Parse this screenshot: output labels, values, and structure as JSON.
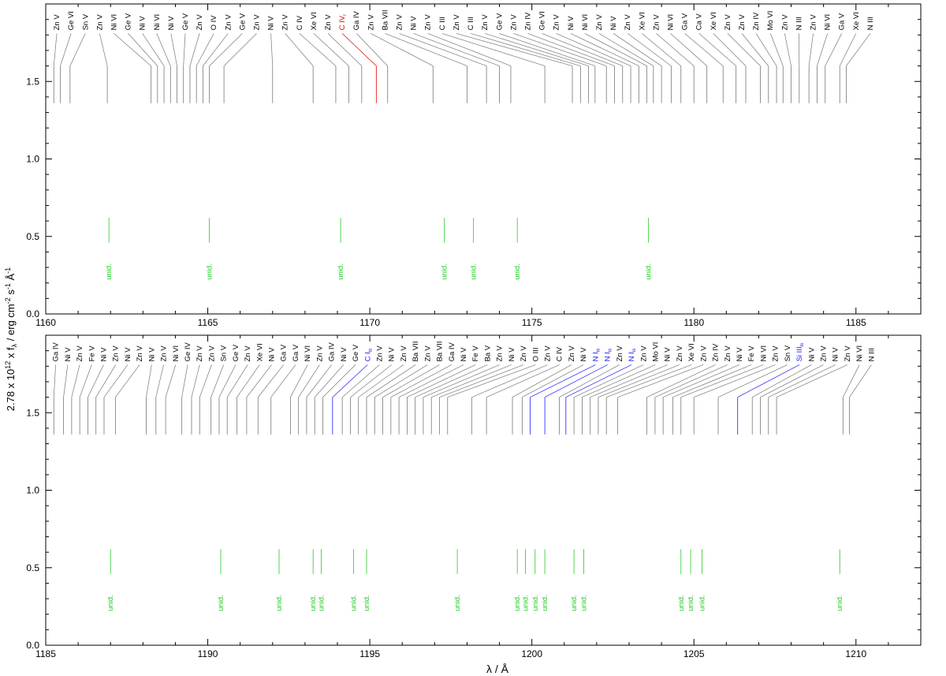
{
  "figure": {
    "ylabel_prefix": "2.78 x 10",
    "ylabel_exp": "12",
    "ylabel_mid": " x f",
    "ylabel_sub": "λ",
    "ylabel_units": " / erg cm",
    "ylabel_exp2": "-2",
    "ylabel_s": " s",
    "ylabel_exp3": "-1",
    "ylabel_A": " Å",
    "ylabel_exp4": "-1",
    "xlabel": "λ / Å",
    "colors": {
      "observed": "#808080",
      "model": "#e00000",
      "label": "#000000",
      "interstellar": "#1a1aff",
      "unid": "#22cc22",
      "axis": "#000000"
    }
  },
  "chart_data": [
    {
      "type": "line",
      "panel": "top",
      "xlim": [
        1160,
        1187
      ],
      "ylim": [
        0,
        2
      ],
      "xticks": [
        1160,
        1165,
        1170,
        1175,
        1180,
        1185
      ],
      "yticks": [
        "0.0",
        "0.5",
        "1.0",
        "1.5"
      ],
      "series": [],
      "ion_labels": [
        {
          "x": 1160.25,
          "label": "Zn V"
        },
        {
          "x": 1160.45,
          "label": "Ge VI"
        },
        {
          "x": 1160.75,
          "label": "Sn V"
        },
        {
          "x": 1161.9,
          "label": "Zn V"
        },
        {
          "x": 1163.25,
          "label": "Ni VI"
        },
        {
          "x": 1163.45,
          "label": "Ge V"
        },
        {
          "x": 1163.65,
          "label": "Ni V"
        },
        {
          "x": 1163.85,
          "label": "Ni VI"
        },
        {
          "x": 1164.05,
          "label": "Ni V"
        },
        {
          "x": 1164.25,
          "label": "Ge V"
        },
        {
          "x": 1164.45,
          "label": "Zn V"
        },
        {
          "x": 1164.65,
          "label": "O IV"
        },
        {
          "x": 1164.85,
          "label": "Zn V"
        },
        {
          "x": 1165.05,
          "label": "Ge V"
        },
        {
          "x": 1165.5,
          "label": "Zn V"
        },
        {
          "x": 1167.0,
          "label": "Ni V"
        },
        {
          "x": 1168.25,
          "label": "Zn V"
        },
        {
          "x": 1168.95,
          "label": "C IV"
        },
        {
          "x": 1169.35,
          "label": "Xe VI"
        },
        {
          "x": 1169.75,
          "label": "Zn V"
        },
        {
          "x": 1170.2,
          "label": "C IV",
          "sub": "r",
          "color": "red"
        },
        {
          "x": 1170.55,
          "label": "Ga IV"
        },
        {
          "x": 1171.95,
          "label": "Zn V"
        },
        {
          "x": 1173.0,
          "label": "Ba VII"
        },
        {
          "x": 1173.6,
          "label": "Zn V"
        },
        {
          "x": 1174.0,
          "label": "Ni V"
        },
        {
          "x": 1174.35,
          "label": "Zn V"
        },
        {
          "x": 1175.4,
          "label": "C III"
        },
        {
          "x": 1176.25,
          "label": "Zn V"
        },
        {
          "x": 1176.5,
          "label": "C III"
        },
        {
          "x": 1176.75,
          "label": "Zn V"
        },
        {
          "x": 1176.95,
          "label": "Ge V"
        },
        {
          "x": 1177.3,
          "label": "Zn V"
        },
        {
          "x": 1177.55,
          "label": "Zn IV"
        },
        {
          "x": 1177.8,
          "label": "Ge VI"
        },
        {
          "x": 1178.05,
          "label": "Zn V"
        },
        {
          "x": 1178.3,
          "label": "Ni V"
        },
        {
          "x": 1178.55,
          "label": "Ni VI"
        },
        {
          "x": 1178.75,
          "label": "Zn V"
        },
        {
          "x": 1179.0,
          "label": "Ni V"
        },
        {
          "x": 1179.3,
          "label": "Zn V"
        },
        {
          "x": 1179.6,
          "label": "Xe VI"
        },
        {
          "x": 1180.0,
          "label": "Zn V"
        },
        {
          "x": 1180.4,
          "label": "Ni VI"
        },
        {
          "x": 1180.9,
          "label": "Ga V"
        },
        {
          "x": 1181.3,
          "label": "Ca V"
        },
        {
          "x": 1181.6,
          "label": "Xe VI"
        },
        {
          "x": 1182.05,
          "label": "Zn V"
        },
        {
          "x": 1182.3,
          "label": "Zn V"
        },
        {
          "x": 1182.55,
          "label": "Zn IV"
        },
        {
          "x": 1182.75,
          "label": "Mo VI"
        },
        {
          "x": 1183.0,
          "label": "Zn V"
        },
        {
          "x": 1183.25,
          "label": "N III"
        },
        {
          "x": 1183.55,
          "label": "Zn V"
        },
        {
          "x": 1183.8,
          "label": "Ni VI"
        },
        {
          "x": 1184.05,
          "label": "Ga V"
        },
        {
          "x": 1184.5,
          "label": "Xe VI"
        },
        {
          "x": 1184.7,
          "label": "N III"
        }
      ],
      "unid_labels": [
        {
          "x": 1161.95,
          "label": "unid."
        },
        {
          "x": 1165.05,
          "label": "unid."
        },
        {
          "x": 1169.1,
          "label": "unid."
        },
        {
          "x": 1172.3,
          "label": "unid."
        },
        {
          "x": 1173.2,
          "label": "unid."
        },
        {
          "x": 1174.55,
          "label": "unid."
        },
        {
          "x": 1178.6,
          "label": "unid."
        }
      ]
    },
    {
      "type": "line",
      "panel": "bottom",
      "xlim": [
        1185,
        1212
      ],
      "ylim": [
        0,
        2
      ],
      "xticks": [
        1185,
        1190,
        1195,
        1200,
        1205,
        1210
      ],
      "yticks": [
        "0.0",
        "0.5",
        "1.0",
        "1.5"
      ],
      "series": [],
      "ion_labels": [
        {
          "x": 1185.25,
          "label": "Ga IV"
        },
        {
          "x": 1185.55,
          "label": "Ni V"
        },
        {
          "x": 1185.8,
          "label": "Zn V"
        },
        {
          "x": 1186.05,
          "label": "Fe V"
        },
        {
          "x": 1186.3,
          "label": "Ni V"
        },
        {
          "x": 1186.55,
          "label": "Zn V"
        },
        {
          "x": 1186.8,
          "label": "Ni V"
        },
        {
          "x": 1187.15,
          "label": "Zn V"
        },
        {
          "x": 1188.1,
          "label": "Ni V"
        },
        {
          "x": 1188.4,
          "label": "Zn V"
        },
        {
          "x": 1188.7,
          "label": "Ni VI"
        },
        {
          "x": 1189.2,
          "label": "Ge IV"
        },
        {
          "x": 1189.5,
          "label": "Zn V"
        },
        {
          "x": 1189.75,
          "label": "Zn V"
        },
        {
          "x": 1190.1,
          "label": "Sn V"
        },
        {
          "x": 1190.35,
          "label": "Ge V"
        },
        {
          "x": 1190.6,
          "label": "Zn V"
        },
        {
          "x": 1190.9,
          "label": "Xe VI"
        },
        {
          "x": 1191.2,
          "label": "Ni V"
        },
        {
          "x": 1191.55,
          "label": "Ga V"
        },
        {
          "x": 1191.95,
          "label": "Ga V"
        },
        {
          "x": 1192.55,
          "label": "Ni VI"
        },
        {
          "x": 1192.8,
          "label": "Zn V"
        },
        {
          "x": 1193.05,
          "label": "Ga IV"
        },
        {
          "x": 1193.3,
          "label": "Ni V"
        },
        {
          "x": 1193.55,
          "label": "Ge V"
        },
        {
          "x": 1193.85,
          "label": "C I",
          "sub": "is",
          "color": "blue"
        },
        {
          "x": 1194.15,
          "label": "Zn V"
        },
        {
          "x": 1194.4,
          "label": "Ni V"
        },
        {
          "x": 1194.65,
          "label": "Zn V"
        },
        {
          "x": 1194.9,
          "label": "Ba VII"
        },
        {
          "x": 1195.15,
          "label": "Zn V"
        },
        {
          "x": 1195.4,
          "label": "Ba VII"
        },
        {
          "x": 1195.65,
          "label": "Ga IV"
        },
        {
          "x": 1195.9,
          "label": "Ni V"
        },
        {
          "x": 1196.15,
          "label": "Fe V"
        },
        {
          "x": 1196.4,
          "label": "Ba V"
        },
        {
          "x": 1196.65,
          "label": "Zn V"
        },
        {
          "x": 1196.9,
          "label": "Ni V"
        },
        {
          "x": 1197.15,
          "label": "Zn V"
        },
        {
          "x": 1197.4,
          "label": "O III"
        },
        {
          "x": 1198.15,
          "label": "Zn V"
        },
        {
          "x": 1198.6,
          "label": "C IV"
        },
        {
          "x": 1199.4,
          "label": "Zn V"
        },
        {
          "x": 1199.7,
          "label": "Ni V"
        },
        {
          "x": 1199.95,
          "label": "N I",
          "sub": "is",
          "color": "blue"
        },
        {
          "x": 1200.4,
          "label": "N I",
          "sub": "is",
          "color": "blue"
        },
        {
          "x": 1200.85,
          "label": "Zn V"
        },
        {
          "x": 1201.05,
          "label": "N I",
          "sub": "is",
          "color": "blue"
        },
        {
          "x": 1201.3,
          "label": "Zn V"
        },
        {
          "x": 1201.55,
          "label": "Mo VI"
        },
        {
          "x": 1201.8,
          "label": "Ni V"
        },
        {
          "x": 1202.05,
          "label": "Zn V"
        },
        {
          "x": 1202.3,
          "label": "Xe VI"
        },
        {
          "x": 1202.65,
          "label": "Zn V"
        },
        {
          "x": 1203.55,
          "label": "Zn IV"
        },
        {
          "x": 1203.8,
          "label": "Zn V"
        },
        {
          "x": 1204.05,
          "label": "Ni V"
        },
        {
          "x": 1204.35,
          "label": "Fe V"
        },
        {
          "x": 1204.6,
          "label": "Ni VI"
        },
        {
          "x": 1205.0,
          "label": "Zn V"
        },
        {
          "x": 1205.75,
          "label": "Sn V"
        },
        {
          "x": 1206.35,
          "label": "Si III",
          "sub": "is",
          "color": "blue"
        },
        {
          "x": 1206.8,
          "label": "Ni V"
        },
        {
          "x": 1207.05,
          "label": "Zn V"
        },
        {
          "x": 1207.3,
          "label": "Ni V"
        },
        {
          "x": 1207.55,
          "label": "Zn V"
        },
        {
          "x": 1209.6,
          "label": "Ni VI"
        },
        {
          "x": 1209.8,
          "label": "N III"
        }
      ],
      "unid_labels": [
        {
          "x": 1187.0,
          "label": "unid."
        },
        {
          "x": 1190.4,
          "label": "unid."
        },
        {
          "x": 1192.2,
          "label": "unid."
        },
        {
          "x": 1193.25,
          "label": "unid."
        },
        {
          "x": 1193.5,
          "label": "unid."
        },
        {
          "x": 1194.5,
          "label": "unid."
        },
        {
          "x": 1194.9,
          "label": "unid."
        },
        {
          "x": 1197.7,
          "label": "unid."
        },
        {
          "x": 1199.55,
          "label": "unid."
        },
        {
          "x": 1199.8,
          "label": "unid."
        },
        {
          "x": 1200.1,
          "label": "unid."
        },
        {
          "x": 1200.4,
          "label": "unid."
        },
        {
          "x": 1201.3,
          "label": "unid."
        },
        {
          "x": 1201.6,
          "label": "unid."
        },
        {
          "x": 1204.6,
          "label": "unid."
        },
        {
          "x": 1204.9,
          "label": "unid."
        },
        {
          "x": 1205.25,
          "label": "unid."
        },
        {
          "x": 1209.5,
          "label": "unid."
        }
      ]
    }
  ]
}
